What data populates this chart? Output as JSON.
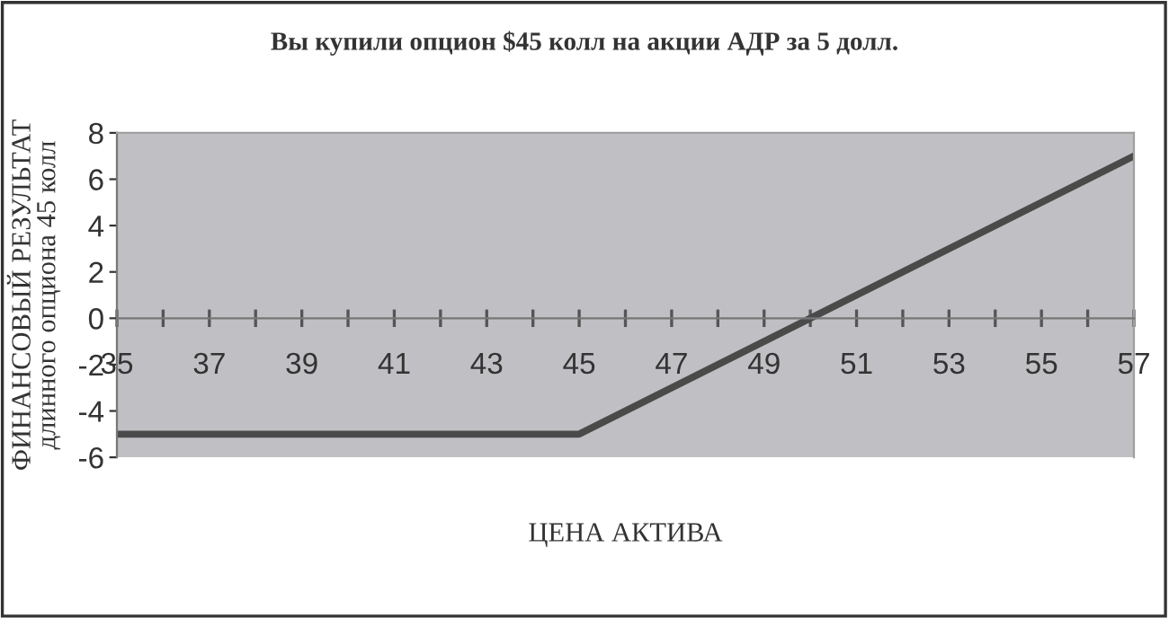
{
  "chart_data": {
    "type": "line",
    "title": "Вы купили опцион $45 колл на акции АДР за 5 долл.",
    "xlabel": "ЦЕНА АКТИВА",
    "ylabel": "ФИНАНСОВЫЙ РЕЗУЛЬТАТ\nдлинного опциона 45 колл",
    "x": [
      35,
      45,
      57
    ],
    "series": [
      {
        "color": "#4a4a4a",
        "values": [
          -5,
          -5,
          7
        ]
      }
    ],
    "xlim": [
      35,
      57
    ],
    "ylim": [
      -6,
      8
    ],
    "xticks": [
      35,
      {
        "value": 36,
        "label": null
      },
      37,
      {
        "value": 38,
        "label": null
      },
      39,
      {
        "value": 40,
        "label": null
      },
      41,
      {
        "value": 42,
        "label": null
      },
      43,
      {
        "value": 44,
        "label": null
      },
      45,
      {
        "value": 46,
        "label": null
      },
      47,
      {
        "value": 48,
        "label": null
      },
      49,
      {
        "value": 50,
        "label": null
      },
      51,
      {
        "value": 52,
        "label": null
      },
      53,
      {
        "value": 54,
        "label": null
      },
      55,
      {
        "value": 56,
        "label": null
      },
      57
    ],
    "yticks": [
      -6,
      -4,
      -2,
      0,
      2,
      4,
      6,
      8
    ],
    "grid": false,
    "legend": false,
    "marker": "none",
    "line_style": "solid"
  }
}
